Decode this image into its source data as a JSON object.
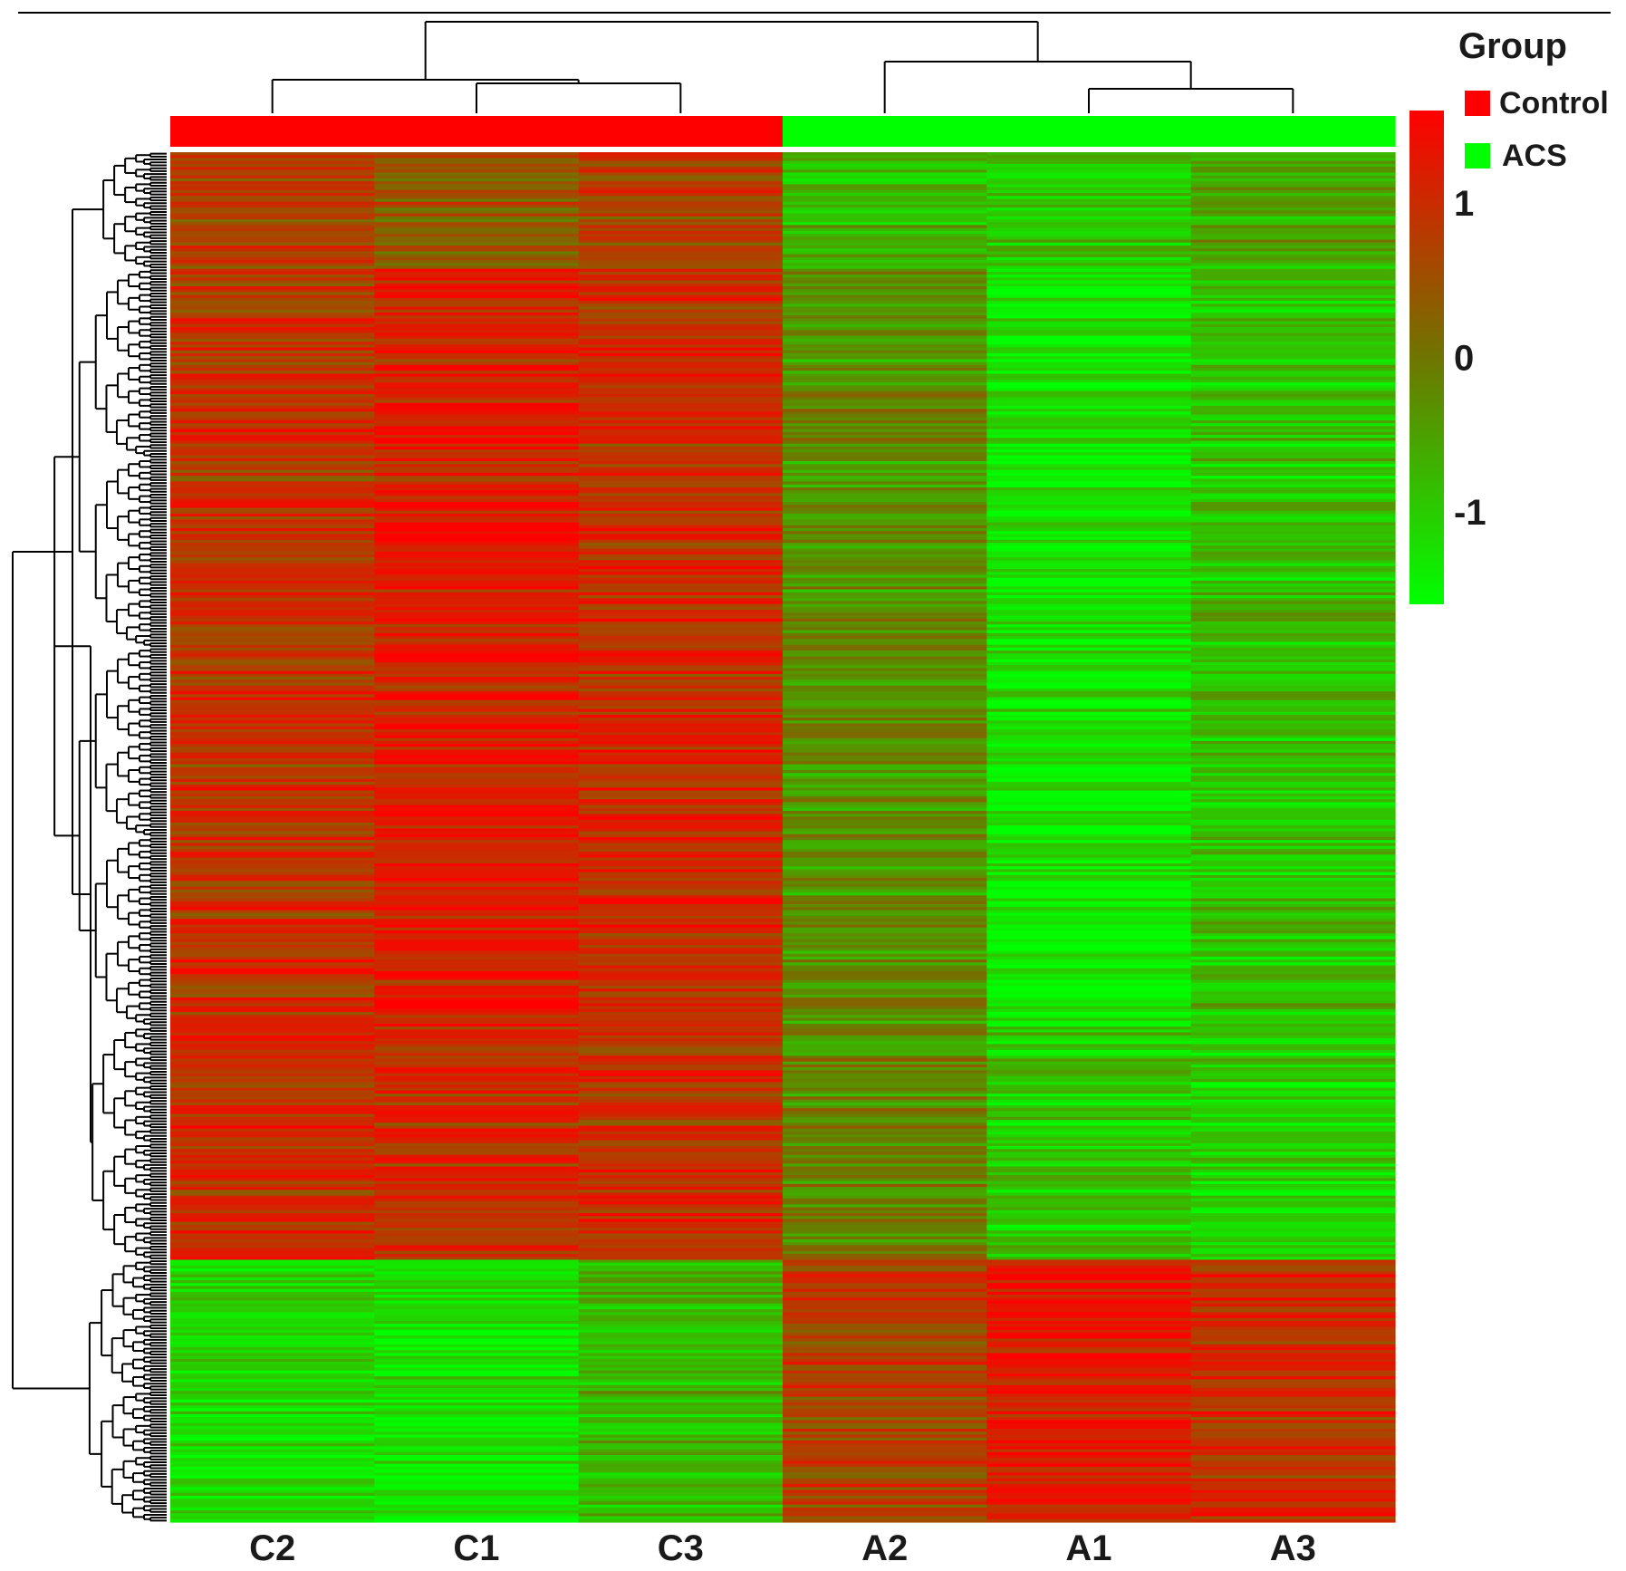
{
  "chart_data": {
    "type": "heatmap",
    "title": "",
    "xlabel": "",
    "ylabel": "",
    "columns": [
      "C2",
      "C1",
      "C3",
      "A2",
      "A1",
      "A3"
    ],
    "column_groups": [
      "Control",
      "Control",
      "Control",
      "ACS",
      "ACS",
      "ACS"
    ],
    "legend": {
      "title": "Group",
      "entries": [
        {
          "name": "Control",
          "color": "#ff0000"
        },
        {
          "name": "ACS",
          "color": "#00ff00"
        }
      ]
    },
    "colorbar": {
      "ticks": [
        {
          "value": 1,
          "label": "1"
        },
        {
          "value": 0,
          "label": "0"
        },
        {
          "value": -1,
          "label": "-1"
        }
      ],
      "range": [
        -1.6,
        1.6
      ],
      "low_color": "#00ff00",
      "mid_color": "#6f7500",
      "high_color": "#ff0000"
    },
    "row_clusters": [
      {
        "rows": 40,
        "values": [
          0.7,
          0.4,
          0.7,
          -0.8,
          -1.0,
          -0.6
        ]
      },
      {
        "rows": 260,
        "values": [
          0.9,
          1.2,
          1.0,
          -0.3,
          -1.3,
          -0.9
        ]
      },
      {
        "rows": 80,
        "values": [
          0.9,
          0.9,
          0.9,
          -0.2,
          -1.0,
          -1.1
        ]
      },
      {
        "rows": 90,
        "values": [
          -1.2,
          -1.3,
          -0.8,
          0.7,
          1.2,
          1.0
        ]
      }
    ]
  }
}
